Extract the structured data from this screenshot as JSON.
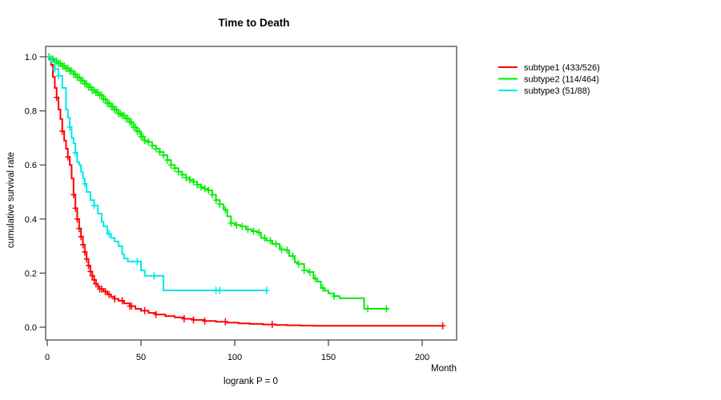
{
  "chart_data": {
    "type": "line",
    "subtype": "kaplan-meier-step",
    "title": "Time to Death",
    "xlabel": "Month",
    "ylabel": "cumulative survival rate",
    "annotation": "logrank P = 0",
    "xlim": [
      0,
      218
    ],
    "ylim": [
      0.0,
      1.0
    ],
    "xticks": [
      0,
      50,
      100,
      150,
      200
    ],
    "yticks": [
      0.0,
      0.2,
      0.4,
      0.6,
      0.8,
      1.0
    ],
    "grid": false,
    "legend_position": "right-outside-top",
    "axis_color": "#3c3c3c",
    "series": [
      {
        "name": "subtype1 (433/526)",
        "color": "#FF0000",
        "points": [
          [
            0,
            1.0
          ],
          [
            1,
            0.99
          ],
          [
            2,
            0.97
          ],
          [
            3,
            0.925
          ],
          [
            4,
            0.885
          ],
          [
            5,
            0.85
          ],
          [
            6,
            0.805
          ],
          [
            7,
            0.77
          ],
          [
            8,
            0.725
          ],
          [
            9,
            0.69
          ],
          [
            10,
            0.66
          ],
          [
            11,
            0.63
          ],
          [
            12,
            0.6
          ],
          [
            13,
            0.55
          ],
          [
            14,
            0.49
          ],
          [
            15,
            0.44
          ],
          [
            16,
            0.4
          ],
          [
            17,
            0.365
          ],
          [
            18,
            0.335
          ],
          [
            19,
            0.305
          ],
          [
            20,
            0.278
          ],
          [
            21,
            0.252
          ],
          [
            22,
            0.228
          ],
          [
            23,
            0.206
          ],
          [
            24,
            0.19
          ],
          [
            25,
            0.175
          ],
          [
            26,
            0.16
          ],
          [
            27,
            0.149
          ],
          [
            28,
            0.141
          ],
          [
            30,
            0.132
          ],
          [
            32,
            0.121
          ],
          [
            34,
            0.112
          ],
          [
            36,
            0.105
          ],
          [
            38,
            0.098
          ],
          [
            41,
            0.088
          ],
          [
            44,
            0.078
          ],
          [
            47,
            0.068
          ],
          [
            50,
            0.061
          ],
          [
            54,
            0.053
          ],
          [
            58,
            0.047
          ],
          [
            63,
            0.041
          ],
          [
            68,
            0.036
          ],
          [
            73,
            0.031
          ],
          [
            78,
            0.027
          ],
          [
            84,
            0.023
          ],
          [
            90,
            0.02
          ],
          [
            96,
            0.017
          ],
          [
            102,
            0.014
          ],
          [
            108,
            0.012
          ],
          [
            115,
            0.01
          ],
          [
            122,
            0.008
          ],
          [
            128,
            0.007
          ],
          [
            135,
            0.006
          ],
          [
            142,
            0.005
          ],
          [
            211,
            0.005
          ]
        ],
        "censor_months": [
          5,
          8,
          11,
          14,
          15,
          16,
          17,
          18,
          19,
          20,
          21,
          22,
          23,
          24,
          25,
          26,
          28,
          29,
          31,
          33,
          36,
          40,
          44,
          45,
          52,
          58,
          73,
          78,
          84,
          95,
          120,
          211
        ]
      },
      {
        "name": "subtype2 (114/464)",
        "color": "#00EE00",
        "points": [
          [
            0,
            1.0
          ],
          [
            2,
            0.992
          ],
          [
            4,
            0.984
          ],
          [
            6,
            0.975
          ],
          [
            8,
            0.966
          ],
          [
            10,
            0.957
          ],
          [
            12,
            0.948
          ],
          [
            14,
            0.936
          ],
          [
            16,
            0.924
          ],
          [
            18,
            0.912
          ],
          [
            20,
            0.9
          ],
          [
            22,
            0.888
          ],
          [
            24,
            0.876
          ],
          [
            26,
            0.868
          ],
          [
            28,
            0.858
          ],
          [
            30,
            0.843
          ],
          [
            32,
            0.828
          ],
          [
            34,
            0.816
          ],
          [
            36,
            0.804
          ],
          [
            38,
            0.79
          ],
          [
            40,
            0.783
          ],
          [
            42,
            0.772
          ],
          [
            44,
            0.758
          ],
          [
            46,
            0.74
          ],
          [
            48,
            0.724
          ],
          [
            50,
            0.705
          ],
          [
            52,
            0.69
          ],
          [
            54,
            0.685
          ],
          [
            56,
            0.672
          ],
          [
            58,
            0.66
          ],
          [
            60,
            0.648
          ],
          [
            62,
            0.636
          ],
          [
            64,
            0.618
          ],
          [
            66,
            0.6
          ],
          [
            68,
            0.588
          ],
          [
            70,
            0.575
          ],
          [
            72,
            0.564
          ],
          [
            74,
            0.553
          ],
          [
            76,
            0.545
          ],
          [
            78,
            0.538
          ],
          [
            80,
            0.527
          ],
          [
            82,
            0.518
          ],
          [
            84,
            0.512
          ],
          [
            86,
            0.506
          ],
          [
            88,
            0.49
          ],
          [
            90,
            0.47
          ],
          [
            92,
            0.455
          ],
          [
            94,
            0.435
          ],
          [
            96,
            0.41
          ],
          [
            98,
            0.385
          ],
          [
            100,
            0.378
          ],
          [
            103,
            0.373
          ],
          [
            106,
            0.362
          ],
          [
            109,
            0.355
          ],
          [
            112,
            0.35
          ],
          [
            114,
            0.33
          ],
          [
            117,
            0.32
          ],
          [
            120,
            0.308
          ],
          [
            124,
            0.288
          ],
          [
            127,
            0.285
          ],
          [
            129,
            0.263
          ],
          [
            132,
            0.24
          ],
          [
            134,
            0.234
          ],
          [
            137,
            0.21
          ],
          [
            139,
            0.204
          ],
          [
            142,
            0.18
          ],
          [
            144,
            0.169
          ],
          [
            146,
            0.145
          ],
          [
            148,
            0.135
          ],
          [
            150,
            0.125
          ],
          [
            153,
            0.115
          ],
          [
            156,
            0.107
          ],
          [
            169,
            0.068
          ],
          [
            182,
            0.068
          ]
        ],
        "censor_months": [
          1,
          2,
          3,
          4,
          5,
          6,
          7,
          8,
          9,
          10,
          11,
          12,
          13,
          14,
          15,
          16,
          17,
          18,
          19,
          20,
          21,
          22,
          23,
          24,
          25,
          26,
          27,
          28,
          29,
          30,
          31,
          32,
          33,
          34,
          35,
          36,
          37,
          38,
          39,
          40,
          41,
          42,
          43,
          44,
          45,
          46,
          47,
          48,
          49,
          50,
          51,
          52,
          54,
          56,
          58,
          60,
          62,
          64,
          66,
          68,
          70,
          72,
          74,
          76,
          78,
          80,
          82,
          84,
          86,
          88,
          90,
          92,
          95,
          98,
          101,
          104,
          107,
          110,
          113,
          116,
          119,
          122,
          125,
          128,
          131,
          134,
          137,
          140,
          143,
          147,
          153,
          171,
          181
        ]
      },
      {
        "name": "subtype3 (51/88)",
        "color": "#00E8E8",
        "points": [
          [
            0,
            1.0
          ],
          [
            2,
            0.98
          ],
          [
            4,
            0.955
          ],
          [
            6,
            0.93
          ],
          [
            8,
            0.885
          ],
          [
            10,
            0.805
          ],
          [
            11,
            0.775
          ],
          [
            12,
            0.74
          ],
          [
            13,
            0.7
          ],
          [
            14,
            0.68
          ],
          [
            15,
            0.645
          ],
          [
            16,
            0.61
          ],
          [
            17,
            0.6
          ],
          [
            18,
            0.575
          ],
          [
            19,
            0.55
          ],
          [
            20,
            0.53
          ],
          [
            21,
            0.5
          ],
          [
            23,
            0.47
          ],
          [
            25,
            0.45
          ],
          [
            27,
            0.42
          ],
          [
            29,
            0.39
          ],
          [
            30,
            0.373
          ],
          [
            32,
            0.345
          ],
          [
            34,
            0.33
          ],
          [
            36,
            0.317
          ],
          [
            38,
            0.3
          ],
          [
            40,
            0.27
          ],
          [
            41,
            0.254
          ],
          [
            43,
            0.243
          ],
          [
            50,
            0.21
          ],
          [
            52,
            0.19
          ],
          [
            62,
            0.136
          ],
          [
            117,
            0.136
          ]
        ],
        "censor_months": [
          4,
          6,
          12,
          15,
          20,
          25,
          33,
          48,
          57,
          90,
          92,
          117
        ]
      }
    ]
  }
}
